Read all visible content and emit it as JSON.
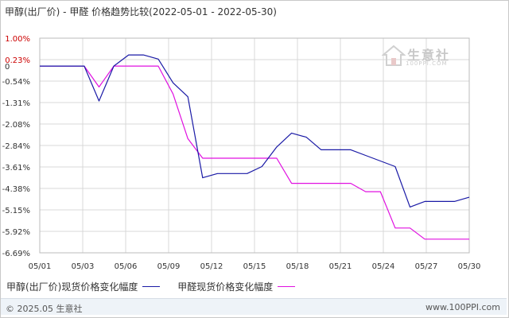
{
  "title": "甲醇(出厂价) - 甲醛 价格趋势比较(2022-05-01 - 2022-05-30)",
  "watermark": {
    "text": "生意社",
    "sub": "100PPI.COM"
  },
  "footer": {
    "left": "© 2025.05 生意社",
    "right": "www.100PPI.com"
  },
  "colors": {
    "series1": "#1a1aa6",
    "series2": "#e010e0",
    "grid": "#d9d9d9",
    "axis_label": "#333333",
    "zero_label": "#cc0000"
  },
  "chart_data": {
    "type": "line",
    "title": "甲醇(出厂价) - 甲醛 价格趋势比较(2022-05-01 - 2022-05-30)",
    "xlabel": "",
    "ylabel": "",
    "x_ticks": [
      "05/01",
      "05/03",
      "05/06",
      "05/09",
      "05/12",
      "05/15",
      "05/18",
      "05/21",
      "05/24",
      "05/27",
      "05/30"
    ],
    "y_ticks": [
      "1.00%",
      "0.23%",
      "-0.54%",
      "-1.31%",
      "-2.08%",
      "-2.84%",
      "-3.61%",
      "-4.38%",
      "-5.15%",
      "-5.92%",
      "-6.69%"
    ],
    "ylim": [
      -6.69,
      1.0
    ],
    "x": [
      "05/01",
      "05/02",
      "05/03",
      "05/04",
      "05/05",
      "05/06",
      "05/07",
      "05/08",
      "05/09",
      "05/10",
      "05/11",
      "05/12",
      "05/13",
      "05/14",
      "05/15",
      "05/16",
      "05/17",
      "05/18",
      "05/19",
      "05/20",
      "05/21",
      "05/22",
      "05/23",
      "05/24",
      "05/25",
      "05/26",
      "05/27",
      "05/28",
      "05/29",
      "05/30"
    ],
    "grid": true,
    "legend": "bottom",
    "series": [
      {
        "name": "甲醇(出厂价)现货价格变化幅度",
        "color": "#1a1aa6",
        "values": [
          0,
          0,
          0,
          0,
          -1.25,
          0,
          0.4,
          0.4,
          0.25,
          -0.6,
          -1.1,
          -4.0,
          -3.85,
          -3.85,
          -3.85,
          -3.6,
          -2.9,
          -2.4,
          -2.55,
          -3.0,
          -3.0,
          -3.0,
          -3.2,
          -3.4,
          -3.6,
          -5.05,
          -4.85,
          -4.85,
          -4.85,
          -4.7
        ]
      },
      {
        "name": "甲醛现货价格变化幅度",
        "color": "#e010e0",
        "values": [
          0,
          0,
          0,
          0,
          -0.75,
          0,
          0,
          0,
          0,
          -1.0,
          -2.6,
          -3.3,
          -3.3,
          -3.3,
          -3.3,
          -3.3,
          -3.3,
          -4.2,
          -4.2,
          -4.2,
          -4.2,
          -4.2,
          -4.5,
          -4.5,
          -5.8,
          -5.8,
          -6.2,
          -6.2,
          -6.2,
          -6.2
        ]
      }
    ]
  }
}
